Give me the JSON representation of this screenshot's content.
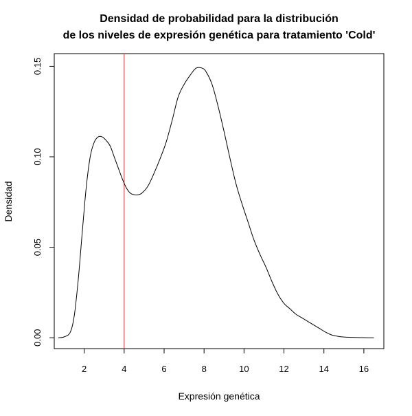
{
  "chart_data": {
    "type": "line",
    "title_line1": "Densidad de probabilidad para la distribución",
    "title_line2": "de los niveles de expresión genética para tratamiento 'Cold'",
    "xlabel": "Expresión genética",
    "ylabel": "Densidad",
    "xlim": [
      0.5,
      17.0
    ],
    "ylim": [
      -0.006,
      0.157
    ],
    "xticks": [
      "2",
      "4",
      "6",
      "8",
      "10",
      "12",
      "14",
      "16"
    ],
    "yticks": [
      "0.00",
      "0.05",
      "0.10",
      "0.15"
    ],
    "grid": false,
    "vline": {
      "x": 4,
      "color": "#e03030"
    },
    "line_color": "#000000",
    "series": [
      {
        "x": [
          0.7,
          1.0,
          1.3,
          1.5,
          1.7,
          1.9,
          2.1,
          2.3,
          2.5,
          2.7,
          2.9,
          3.1,
          3.3,
          3.5,
          3.7,
          3.9,
          4.1,
          4.3,
          4.5,
          4.7,
          4.9,
          5.2,
          5.5,
          5.8,
          6.1,
          6.4,
          6.7,
          7.0,
          7.3,
          7.6,
          7.9,
          8.1,
          8.4,
          8.7,
          9.0,
          9.3,
          9.6,
          9.9,
          10.2,
          10.5,
          10.8,
          11.1,
          11.4,
          11.7,
          12.0,
          12.3,
          12.6,
          12.9,
          13.2,
          13.5,
          13.8,
          14.1,
          14.4,
          14.7,
          15.0,
          15.4,
          15.8,
          16.2,
          16.5
        ],
        "y": [
          0.0,
          0.0005,
          0.003,
          0.012,
          0.032,
          0.058,
          0.083,
          0.1,
          0.108,
          0.111,
          0.111,
          0.109,
          0.106,
          0.1,
          0.094,
          0.088,
          0.083,
          0.08,
          0.079,
          0.079,
          0.08,
          0.084,
          0.091,
          0.099,
          0.108,
          0.12,
          0.133,
          0.14,
          0.145,
          0.149,
          0.149,
          0.147,
          0.14,
          0.128,
          0.114,
          0.099,
          0.085,
          0.074,
          0.064,
          0.054,
          0.046,
          0.039,
          0.031,
          0.024,
          0.019,
          0.016,
          0.013,
          0.011,
          0.009,
          0.007,
          0.005,
          0.003,
          0.0015,
          0.0008,
          0.0004,
          0.0002,
          0.0001,
          0.0,
          0.0
        ]
      }
    ]
  }
}
